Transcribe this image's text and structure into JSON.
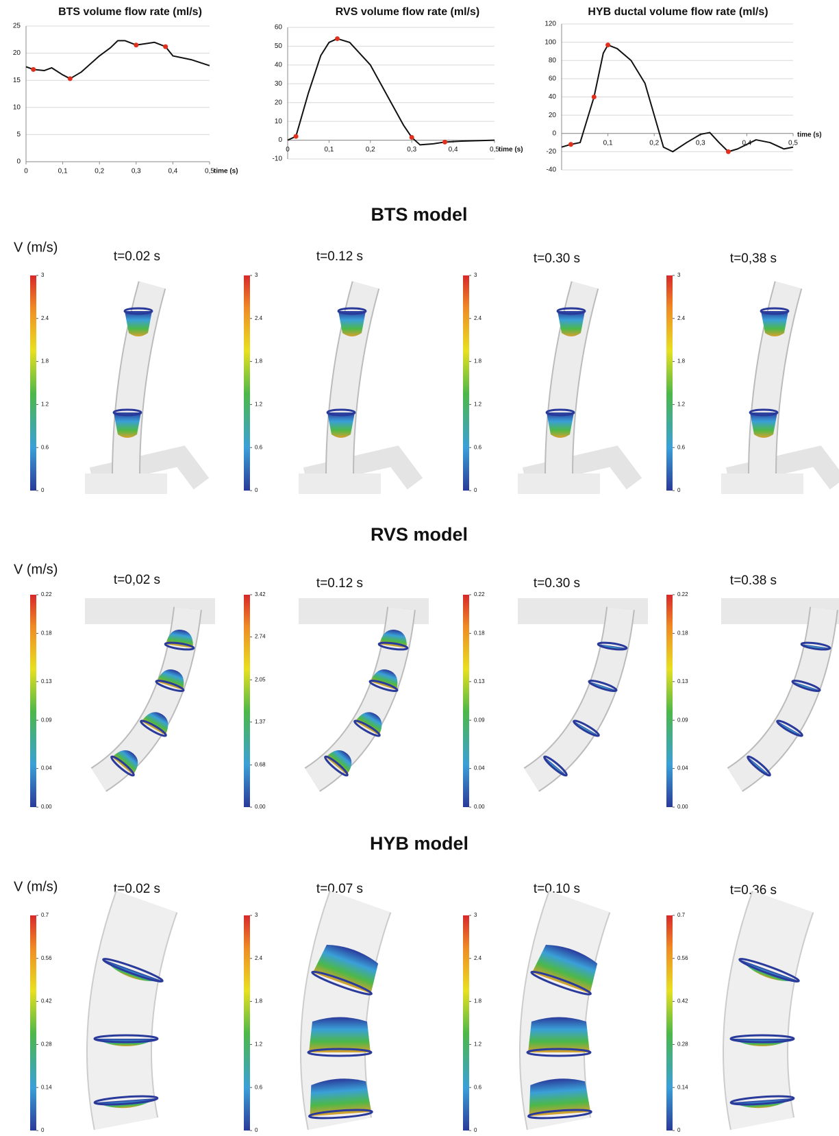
{
  "chart_data": [
    {
      "type": "line",
      "title": "BTS volume flow rate (ml/s)",
      "x_label": "time (s)",
      "x": [
        0,
        0.02,
        0.05,
        0.07,
        0.1,
        0.12,
        0.15,
        0.2,
        0.23,
        0.25,
        0.27,
        0.3,
        0.33,
        0.35,
        0.38,
        0.4,
        0.45,
        0.5
      ],
      "series": [
        {
          "color": "#111111",
          "values": [
            17.5,
            17,
            16.8,
            17.3,
            16,
            15.3,
            16.5,
            19.5,
            21,
            22.3,
            22.3,
            21.5,
            21.8,
            22,
            21.2,
            19.5,
            18.8,
            17.7
          ]
        },
        {
          "color": "#e0301e",
          "marker": true,
          "values": [
            null,
            17,
            null,
            null,
            null,
            15.3,
            null,
            null,
            null,
            null,
            null,
            21.5,
            null,
            null,
            21.2,
            null,
            null,
            null
          ]
        }
      ],
      "xlim": [
        0,
        0.5
      ],
      "ylim": [
        0,
        25
      ],
      "xticks": [
        0,
        {
          "value": 0.1,
          "label": "0,1"
        },
        {
          "value": 0.2,
          "label": "0,2"
        },
        {
          "value": 0.3,
          "label": "0,3"
        },
        {
          "value": 0.4,
          "label": "0,4"
        },
        {
          "value": 0.5,
          "label": "0,5"
        }
      ],
      "yticks": [
        0,
        5,
        10,
        15,
        20,
        25
      ],
      "grid": true
    },
    {
      "type": "line",
      "title": "RVS volume flow rate (ml/s)",
      "x_label": "time (s)",
      "x": [
        0,
        0.02,
        0.05,
        0.08,
        0.1,
        0.12,
        0.15,
        0.2,
        0.25,
        0.28,
        0.3,
        0.32,
        0.35,
        0.38,
        0.42,
        0.5
      ],
      "series": [
        {
          "color": "#111111",
          "values": [
            0,
            2,
            25,
            45,
            52,
            54,
            52,
            40,
            20,
            8,
            1.5,
            -2.5,
            -2,
            -1,
            -0.5,
            0
          ]
        },
        {
          "color": "#e0301e",
          "marker": true,
          "values": [
            null,
            2,
            null,
            null,
            null,
            54,
            null,
            null,
            null,
            null,
            1.5,
            null,
            null,
            -1,
            null,
            null
          ]
        }
      ],
      "xlim": [
        0,
        0.5
      ],
      "ylim": [
        -10,
        60
      ],
      "xticks": [
        0,
        {
          "value": 0.1,
          "label": "0,1"
        },
        {
          "value": 0.2,
          "label": "0,2"
        },
        {
          "value": 0.3,
          "label": "0,3"
        },
        {
          "value": 0.4,
          "label": "0,4"
        },
        {
          "value": 0.5,
          "label": "0,5"
        }
      ],
      "yticks": [
        -10,
        0,
        10,
        20,
        30,
        40,
        50,
        60
      ],
      "grid": true
    },
    {
      "type": "line",
      "title": "HYB ductal volume flow rate (ml/s)",
      "x_label": "time (s)",
      "x": [
        0,
        0.02,
        0.04,
        0.07,
        0.09,
        0.1,
        0.12,
        0.15,
        0.18,
        0.2,
        0.22,
        0.24,
        0.27,
        0.3,
        0.32,
        0.34,
        0.36,
        0.38,
        0.42,
        0.45,
        0.48,
        0.5
      ],
      "series": [
        {
          "color": "#111111",
          "values": [
            -15,
            -12,
            -10,
            40,
            88,
            97,
            93,
            80,
            55,
            20,
            -15,
            -20,
            -10,
            -1,
            1,
            -10,
            -20,
            -17,
            -7,
            -10,
            -17,
            -15
          ]
        },
        {
          "color": "#e0301e",
          "marker": true,
          "values": [
            null,
            -12,
            null,
            40,
            null,
            97,
            null,
            null,
            null,
            null,
            null,
            null,
            null,
            null,
            null,
            null,
            -20,
            null,
            null,
            null,
            null,
            null
          ]
        }
      ],
      "xlim": [
        0,
        0.5
      ],
      "ylim": [
        -40,
        120
      ],
      "xticks": [
        {
          "value": 0.1,
          "label": "0,1"
        },
        {
          "value": 0.2,
          "label": "0,2"
        },
        {
          "value": 0.3,
          "label": "0,3"
        },
        {
          "value": 0.4,
          "label": "0,4"
        },
        {
          "value": 0.5,
          "label": "0,5"
        }
      ],
      "yticks": [
        -40,
        -20,
        0,
        20,
        40,
        60,
        80,
        100,
        120
      ],
      "grid": true
    }
  ],
  "models": [
    {
      "title": "BTS model",
      "velocity_label": "V (m/s)",
      "panels": [
        {
          "time": "t=0.02 s",
          "colorbar": [
            0,
            0.6,
            1.2,
            1.8,
            2.4,
            3
          ]
        },
        {
          "time": "t=0.12 s",
          "colorbar": [
            0,
            0.6,
            1.2,
            1.8,
            2.4,
            3
          ]
        },
        {
          "time": "t=0.30 s",
          "colorbar": [
            0,
            0.6,
            1.2,
            1.8,
            2.4,
            3
          ]
        },
        {
          "time": "t=0,38 s",
          "colorbar": [
            0,
            0.6,
            1.2,
            1.8,
            2.4,
            3
          ]
        }
      ]
    },
    {
      "title": "RVS model",
      "velocity_label": "V (m/s)",
      "panels": [
        {
          "time": "t=0,02 s",
          "colorbar": [
            {
              "value": 0,
              "label": "0.00"
            },
            0.04,
            0.09,
            0.13,
            0.18,
            0.22
          ]
        },
        {
          "time": "t=0.12 s",
          "colorbar": [
            {
              "value": 0,
              "label": "0.00"
            },
            0.68,
            1.37,
            2.05,
            2.74,
            3.42
          ]
        },
        {
          "time": "t=0.30 s",
          "colorbar": [
            {
              "value": 0,
              "label": "0.00"
            },
            0.04,
            0.09,
            0.13,
            0.18,
            0.22
          ]
        },
        {
          "time": "t=0.38 s",
          "colorbar": [
            {
              "value": 0,
              "label": "0.00"
            },
            0.04,
            0.09,
            0.13,
            0.18,
            0.22
          ]
        }
      ]
    },
    {
      "title": "HYB model",
      "velocity_label": "V (m/s)",
      "panels": [
        {
          "time": "t=0.02 s",
          "colorbar": [
            0,
            0.14,
            0.28,
            0.42,
            0.56,
            0.7
          ]
        },
        {
          "time": "t=0.07 s",
          "colorbar": [
            0,
            0.6,
            1.2,
            1.8,
            2.4,
            3
          ]
        },
        {
          "time": "t=0.10 s",
          "colorbar": [
            0,
            0.6,
            1.2,
            1.8,
            2.4,
            3
          ]
        },
        {
          "time": "t=0.36 s",
          "colorbar": [
            0,
            0.14,
            0.28,
            0.42,
            0.56,
            0.7
          ]
        }
      ]
    }
  ]
}
